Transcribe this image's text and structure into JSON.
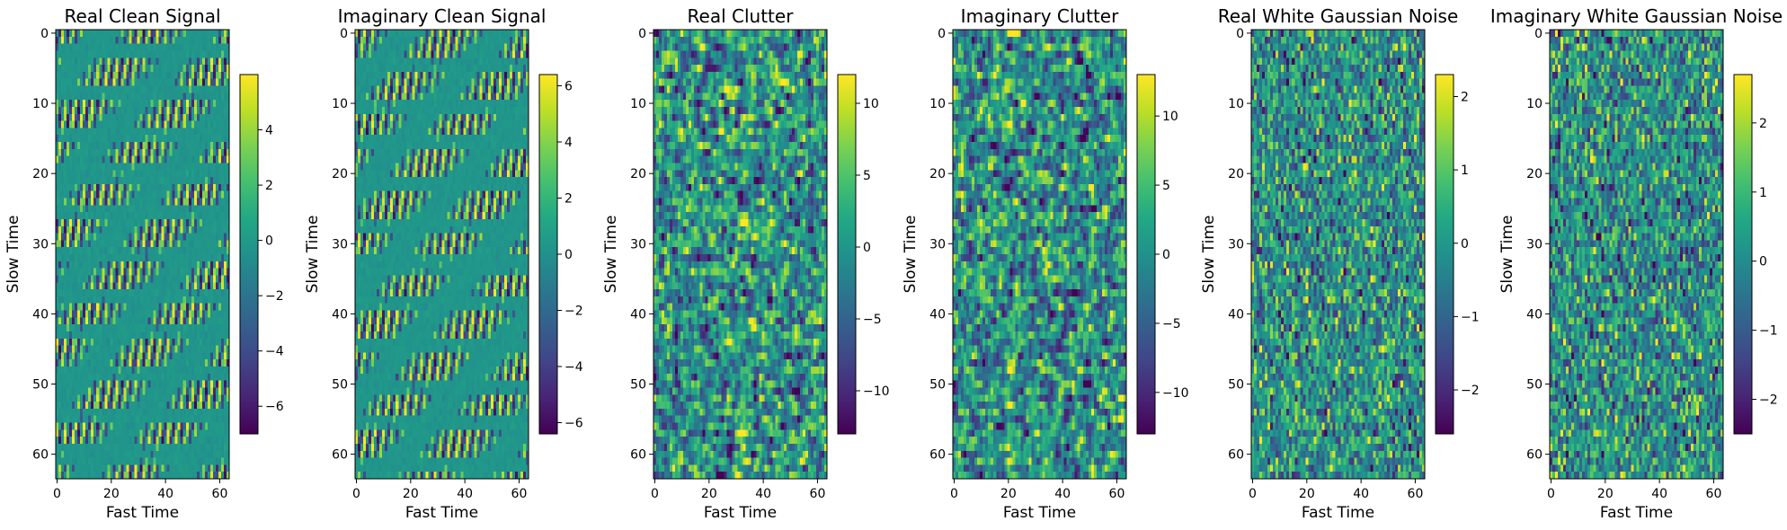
{
  "chart_data": [
    {
      "type": "heatmap",
      "title": "Real Clean Signal",
      "xlabel": "Fast Time",
      "ylabel": "Slow Time",
      "xlim": [
        0,
        63
      ],
      "ylim": [
        63,
        0
      ],
      "xticks": [
        0,
        20,
        40,
        60
      ],
      "yticks": [
        0,
        10,
        20,
        30,
        40,
        50,
        60
      ],
      "colormap": "viridis",
      "clim": [
        -7,
        6
      ],
      "colorbar_ticks": [
        -6,
        -4,
        -2,
        0,
        2,
        4
      ],
      "pattern": "sparse sinusoidal stripes (real part)",
      "grid": false
    },
    {
      "type": "heatmap",
      "title": "Imaginary Clean Signal",
      "xlabel": "Fast Time",
      "ylabel": "Slow Time",
      "xlim": [
        0,
        63
      ],
      "ylim": [
        63,
        0
      ],
      "xticks": [
        0,
        20,
        40,
        60
      ],
      "yticks": [
        0,
        10,
        20,
        30,
        40,
        50,
        60
      ],
      "colormap": "viridis",
      "clim": [
        -6.4,
        6.4
      ],
      "colorbar_ticks": [
        -6,
        -4,
        -2,
        0,
        2,
        4,
        6
      ],
      "pattern": "sparse sinusoidal stripes (imaginary part)",
      "grid": false
    },
    {
      "type": "heatmap",
      "title": "Real Clutter",
      "xlabel": "Fast Time",
      "ylabel": "Slow Time",
      "xlim": [
        0,
        63
      ],
      "ylim": [
        63,
        0
      ],
      "xticks": [
        0,
        20,
        40,
        60
      ],
      "yticks": [
        0,
        10,
        20,
        30,
        40,
        50,
        60
      ],
      "colormap": "viridis",
      "clim": [
        -13,
        12
      ],
      "colorbar_ticks": [
        -10,
        -5,
        0,
        5,
        10
      ],
      "pattern": "correlated random clutter",
      "grid": false
    },
    {
      "type": "heatmap",
      "title": "Imaginary Clutter",
      "xlabel": "Fast Time",
      "ylabel": "Slow Time",
      "xlim": [
        0,
        63
      ],
      "ylim": [
        63,
        0
      ],
      "xticks": [
        0,
        20,
        40,
        60
      ],
      "yticks": [
        0,
        10,
        20,
        30,
        40,
        50,
        60
      ],
      "colormap": "viridis",
      "clim": [
        -13,
        13
      ],
      "colorbar_ticks": [
        -10,
        -5,
        0,
        5,
        10
      ],
      "pattern": "correlated random clutter",
      "grid": false
    },
    {
      "type": "heatmap",
      "title": "Real White Gaussian Noise",
      "xlabel": "Fast Time",
      "ylabel": "Slow Time",
      "xlim": [
        0,
        63
      ],
      "ylim": [
        63,
        0
      ],
      "xticks": [
        0,
        20,
        40,
        60
      ],
      "yticks": [
        0,
        10,
        20,
        30,
        40,
        50,
        60
      ],
      "colormap": "viridis",
      "clim": [
        -2.6,
        2.3
      ],
      "colorbar_ticks": [
        -2,
        -1,
        0,
        1,
        2
      ],
      "pattern": "white gaussian noise",
      "grid": false
    },
    {
      "type": "heatmap",
      "title": "Imaginary White Gaussian Noise",
      "xlabel": "Fast Time",
      "ylabel": "Slow Time",
      "xlim": [
        0,
        63
      ],
      "ylim": [
        63,
        0
      ],
      "xticks": [
        0,
        20,
        40,
        60
      ],
      "yticks": [
        0,
        10,
        20,
        30,
        40,
        50,
        60
      ],
      "colormap": "viridis",
      "clim": [
        -2.5,
        2.7
      ],
      "colorbar_ticks": [
        -2,
        -1,
        0,
        1,
        2
      ],
      "pattern": "white gaussian noise",
      "grid": false
    }
  ]
}
